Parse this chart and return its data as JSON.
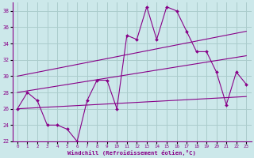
{
  "xlabel": "Windchill (Refroidissement éolien,°C)",
  "background_color": "#cce8ea",
  "grid_color": "#aacccc",
  "line_color": "#880088",
  "xlim": [
    -0.5,
    23.5
  ],
  "ylim": [
    22,
    39
  ],
  "yticks": [
    22,
    24,
    26,
    28,
    30,
    32,
    34,
    36,
    38
  ],
  "xticks": [
    0,
    1,
    2,
    3,
    4,
    5,
    6,
    7,
    8,
    9,
    10,
    11,
    12,
    13,
    14,
    15,
    16,
    17,
    18,
    19,
    20,
    21,
    22,
    23
  ],
  "series1_x": [
    0,
    1,
    2,
    3,
    4,
    5,
    6,
    7,
    8,
    9,
    10,
    11,
    12,
    13,
    14,
    15,
    16,
    17,
    18,
    19,
    20,
    21,
    22,
    23
  ],
  "series1_y": [
    26,
    28,
    27,
    24,
    24,
    23.5,
    22,
    27,
    29.5,
    29.5,
    26,
    35,
    34.5,
    38.5,
    34.5,
    38.5,
    38,
    35.5,
    33,
    33,
    30.5,
    26.5,
    30.5,
    29
  ],
  "trend1_x": [
    0,
    23
  ],
  "trend1_y": [
    26.0,
    27.5
  ],
  "trend2_x": [
    0,
    23
  ],
  "trend2_y": [
    28.0,
    32.5
  ],
  "trend3_x": [
    0,
    23
  ],
  "trend3_y": [
    30.0,
    35.5
  ]
}
